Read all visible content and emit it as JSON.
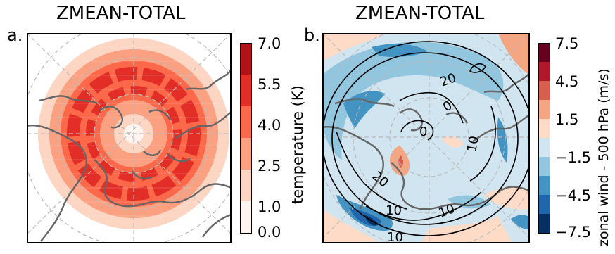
{
  "panel_a": {
    "label": "a.",
    "title": "ZMEAN-TOTAL",
    "colorbar": {
      "label": "temperature (K)",
      "ticks": [
        "7.0",
        "5.5",
        "4.0",
        "2.5",
        "1.0",
        "0.0"
      ],
      "colors": [
        "#fff5f0",
        "#fdd5c3",
        "#fca082",
        "#fb694a",
        "#e22e27",
        "#b11218"
      ]
    }
  },
  "panel_b": {
    "label": "b.",
    "title": "ZMEAN-TOTAL",
    "colorbar": {
      "label": "zonal wind - 500 hPa (m/s)",
      "ticks": [
        "7.5",
        "4.5",
        "1.5",
        "−1.5",
        "−4.5",
        "−7.5"
      ],
      "colors": [
        "#053061",
        "#2166ac",
        "#4393c3",
        "#92c5de",
        "#d1e5f0",
        "#fddbc7",
        "#f4a582",
        "#d6604d",
        "#b2182b",
        "#67001f"
      ]
    },
    "contour_labels": [
      "20",
      "0",
      "0",
      "10",
      "20",
      "10",
      "10",
      "10"
    ]
  },
  "map_style": {
    "coastline_color": "#666666",
    "gridline_color": "#bbbbbb",
    "projection": "north-polar-stereographic"
  }
}
